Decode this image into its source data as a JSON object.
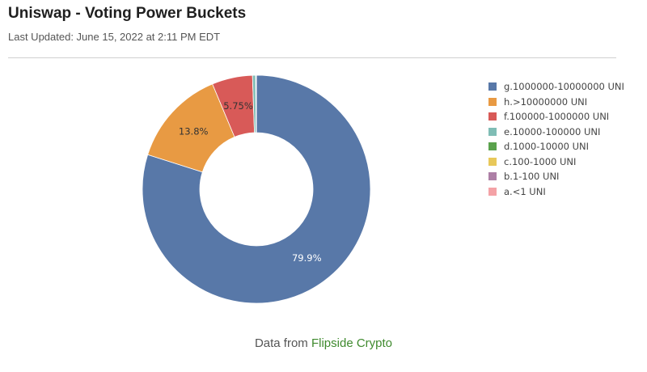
{
  "header": {
    "title": "Uniswap - Voting Power Buckets",
    "updated": "Last Updated: June 15, 2022 at 2:11 PM EDT"
  },
  "footer": {
    "prefix": "Data from",
    "link": "Flipside Crypto"
  },
  "chart_data": {
    "type": "pie",
    "variant": "donut",
    "legend_position": "right",
    "slices": [
      {
        "label": "g.1000000-10000000 UNI",
        "value": 79.9,
        "display": "79.9%",
        "color": "#5878a8"
      },
      {
        "label": "h.>10000000 UNI",
        "value": 13.8,
        "display": "13.8%",
        "color": "#e89a43"
      },
      {
        "label": "f.100000-1000000 UNI",
        "value": 5.75,
        "display": "5.75%",
        "color": "#d85a58"
      },
      {
        "label": "e.10000-100000 UNI",
        "value": 0.45,
        "display": "",
        "color": "#7fbdb5"
      },
      {
        "label": "d.1000-10000 UNI",
        "value": 0.08,
        "display": "",
        "color": "#5aa24d"
      },
      {
        "label": "c.100-1000 UNI",
        "value": 0.01,
        "display": "",
        "color": "#e8c85a"
      },
      {
        "label": "b.1-100 UNI",
        "value": 0.005,
        "display": "",
        "color": "#ad7fa6"
      },
      {
        "label": "a.<1 UNI",
        "value": 0.001,
        "display": "",
        "color": "#f4a2a6"
      }
    ]
  }
}
